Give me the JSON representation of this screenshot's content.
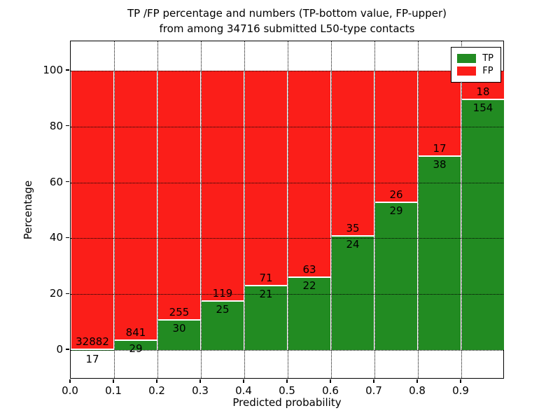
{
  "figure": {
    "title_line1": "TP /FP percentage and numbers (TP-bottom value, FP-upper)",
    "title_line2": "from among 34716 submitted L50-type contacts",
    "xlabel": "Predicted probability",
    "ylabel": "Percentage"
  },
  "legend": {
    "entries": [
      {
        "label": "TP",
        "color": "#228b22"
      },
      {
        "label": "FP",
        "color": "#fb1e19"
      }
    ]
  },
  "colors": {
    "tp": "#228b22",
    "fp": "#fb1e19",
    "bar_edge": "#ffffff",
    "grid": "#000000"
  },
  "chart_data": {
    "type": "bar",
    "stacked": true,
    "normalized_to_percent": true,
    "title": "TP /FP percentage and numbers (TP-bottom value, FP-upper) from among 34716 submitted L50-type contacts",
    "xlabel": "Predicted probability",
    "ylabel": "Percentage",
    "total_contacts": 34716,
    "categories": [
      "0.0-0.1",
      "0.1-0.2",
      "0.2-0.3",
      "0.3-0.4",
      "0.4-0.5",
      "0.5-0.6",
      "0.6-0.7",
      "0.7-0.8",
      "0.8-0.9",
      "0.9-1.0"
    ],
    "series": [
      {
        "name": "TP",
        "counts": [
          17,
          29,
          30,
          25,
          21,
          22,
          24,
          29,
          38,
          154
        ]
      },
      {
        "name": "FP",
        "counts": [
          32882,
          841,
          255,
          119,
          71,
          63,
          35,
          26,
          17,
          18
        ]
      }
    ],
    "tp_percent": [
      0.1,
      3.3,
      10.5,
      17.4,
      22.8,
      25.9,
      40.7,
      52.7,
      69.1,
      89.5
    ],
    "xticks": [
      "0.0",
      "0.1",
      "0.2",
      "0.3",
      "0.4",
      "0.5",
      "0.6",
      "0.7",
      "0.8",
      "0.9"
    ],
    "yticks": [
      0,
      20,
      40,
      60,
      80,
      100
    ],
    "xlim": [
      0.0,
      1.0
    ],
    "ylim": [
      -10.5,
      110.5
    ],
    "grid": true,
    "legend_position": "upper right"
  }
}
